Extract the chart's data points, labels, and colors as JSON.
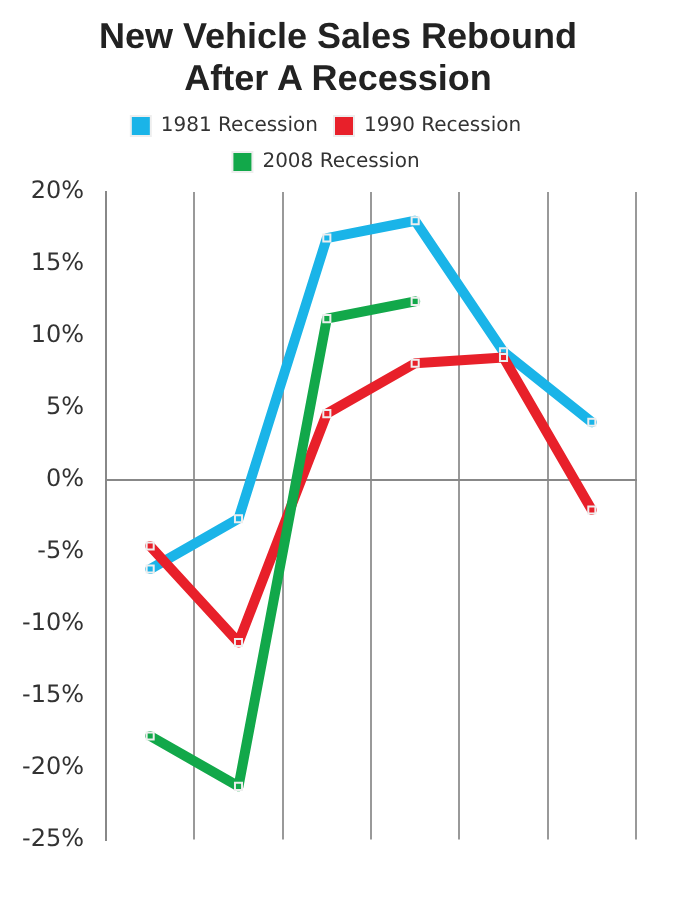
{
  "chart_data": {
    "type": "line",
    "title": "New Vehicle Sales Rebound After A Recession",
    "categories": [
      null,
      null,
      null,
      null,
      null,
      null
    ],
    "series": [
      {
        "name": "1981 Recession",
        "color": "#1ab4e8",
        "values": [
          -6.2,
          -2.7,
          16.8,
          18,
          8.9,
          4
        ]
      },
      {
        "name": "1990 Recession",
        "color": "#e8202a",
        "values": [
          -4.6,
          -11.3,
          4.6,
          8.1,
          8.5,
          -2.1
        ]
      },
      {
        "name": "2008 Recession",
        "color": "#12a84a",
        "values": [
          -17.8,
          -21.3,
          11.2,
          12.4,
          null,
          null
        ]
      }
    ],
    "ylim": [
      -25,
      20
    ],
    "yticks": [
      {
        "value": -25,
        "label": "-25%"
      },
      {
        "value": -20,
        "label": "-20%"
      },
      {
        "value": -15,
        "label": "-15%"
      },
      {
        "value": -10,
        "label": "-10%"
      },
      {
        "value": -5,
        "label": "-5%"
      },
      {
        "value": 0,
        "label": "0%"
      },
      {
        "value": 5,
        "label": "5%"
      },
      {
        "value": 10,
        "label": "10%"
      },
      {
        "value": 15,
        "label": "15%"
      },
      {
        "value": 20,
        "label": "20%"
      }
    ],
    "grid": "x",
    "legend": "top",
    "marker": "square",
    "line_style": "solid"
  }
}
